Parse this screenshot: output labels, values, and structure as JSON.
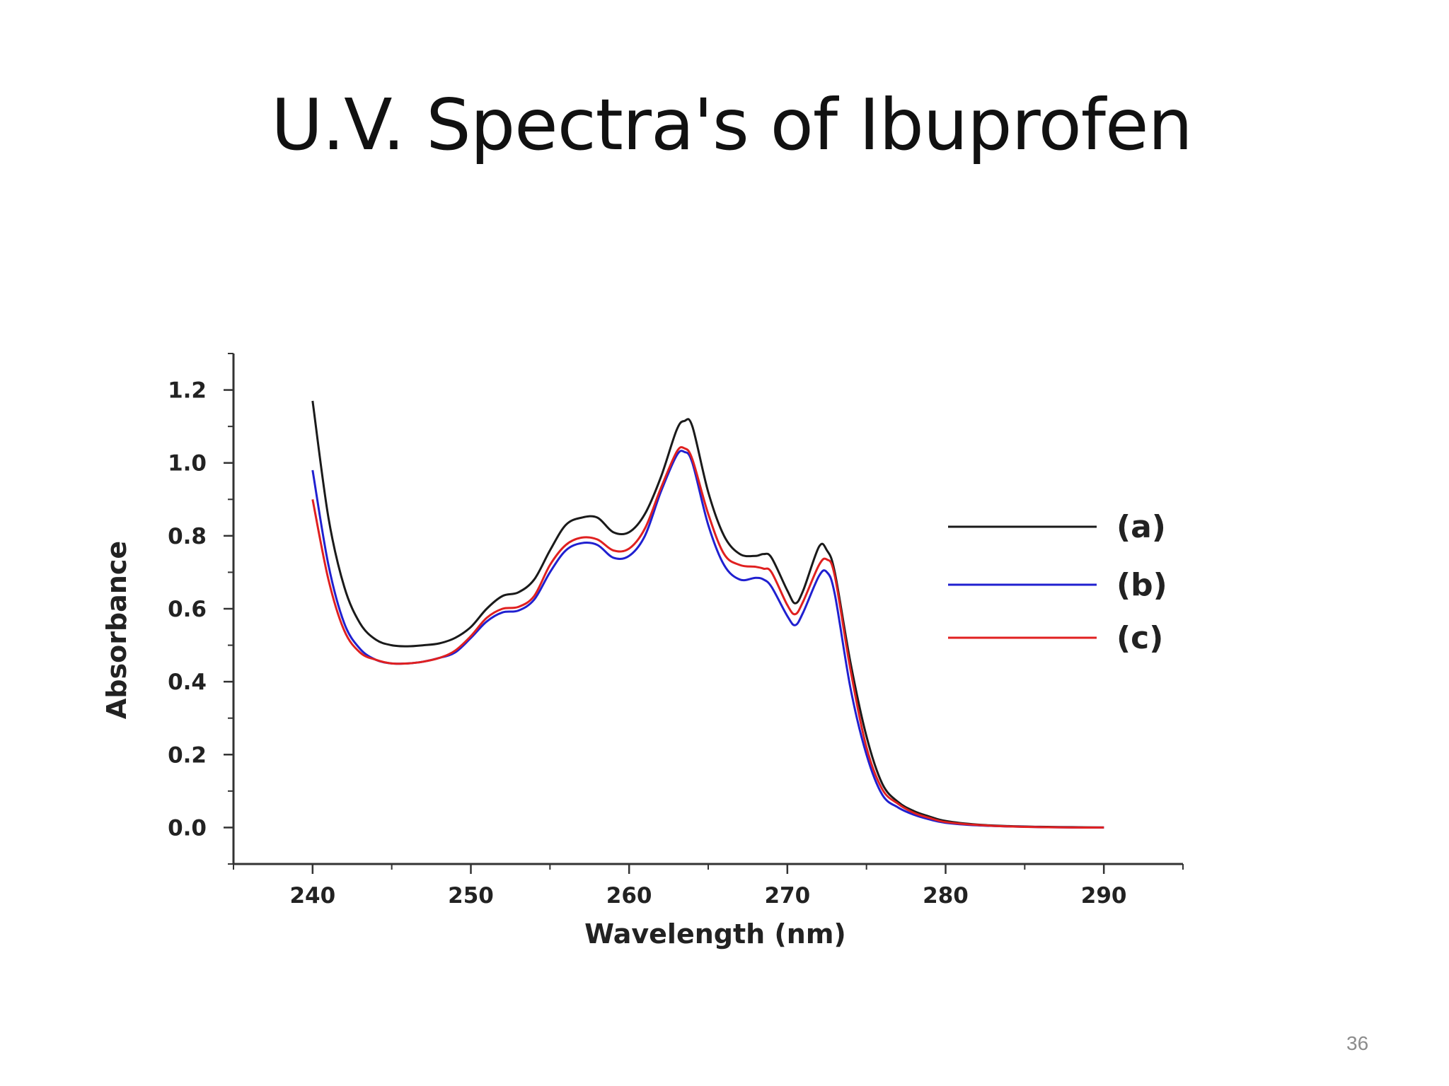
{
  "slide": {
    "title": "U.V. Spectra's of Ibuprofen",
    "page_number": "36"
  },
  "chart_data": {
    "type": "line",
    "title": "",
    "xlabel": "Wavelength (nm)",
    "ylabel": "Absorbance",
    "xlim": [
      235,
      295
    ],
    "ylim": [
      -0.1,
      1.3
    ],
    "xticks": [
      240,
      250,
      260,
      270,
      280,
      290
    ],
    "yticks": [
      0.0,
      0.2,
      0.4,
      0.6,
      0.8,
      1.0,
      1.2
    ],
    "xtick_labels": [
      "240",
      "250",
      "260",
      "270",
      "280",
      "290"
    ],
    "ytick_labels": [
      "0.0",
      "0.2",
      "0.4",
      "0.6",
      "0.8",
      "1.0",
      "1.2"
    ],
    "grid": false,
    "legend_position": "right",
    "x": [
      240,
      241,
      242,
      243,
      244,
      245,
      246,
      247,
      248,
      249,
      250,
      251,
      252,
      253,
      254,
      255,
      256,
      257,
      258,
      259,
      260,
      261,
      262,
      263,
      263.5,
      264,
      265,
      266,
      267,
      268,
      268.5,
      269,
      270,
      270.5,
      271,
      272,
      272.5,
      273,
      274,
      275,
      276,
      277,
      278,
      279,
      280,
      282,
      284,
      286,
      288,
      290
    ],
    "series": [
      {
        "name": "(a)",
        "color": "#1a1a1a",
        "values": [
          1.17,
          0.85,
          0.66,
          0.56,
          0.515,
          0.5,
          0.497,
          0.5,
          0.505,
          0.52,
          0.55,
          0.6,
          0.635,
          0.645,
          0.68,
          0.76,
          0.83,
          0.85,
          0.85,
          0.81,
          0.81,
          0.86,
          0.96,
          1.09,
          1.115,
          1.1,
          0.92,
          0.8,
          0.75,
          0.745,
          0.75,
          0.74,
          0.65,
          0.615,
          0.65,
          0.77,
          0.76,
          0.7,
          0.45,
          0.25,
          0.12,
          0.07,
          0.045,
          0.03,
          0.018,
          0.008,
          0.004,
          0.002,
          0.001,
          0.0
        ]
      },
      {
        "name": "(b)",
        "color": "#2020d0",
        "values": [
          0.98,
          0.72,
          0.56,
          0.49,
          0.46,
          0.45,
          0.45,
          0.455,
          0.465,
          0.48,
          0.52,
          0.565,
          0.59,
          0.595,
          0.625,
          0.7,
          0.76,
          0.78,
          0.775,
          0.74,
          0.745,
          0.8,
          0.92,
          1.02,
          1.03,
          1.0,
          0.83,
          0.72,
          0.68,
          0.685,
          0.68,
          0.66,
          0.58,
          0.555,
          0.59,
          0.69,
          0.7,
          0.64,
          0.38,
          0.2,
          0.09,
          0.055,
          0.035,
          0.022,
          0.013,
          0.006,
          0.003,
          0.001,
          0.0,
          0.0
        ]
      },
      {
        "name": "(c)",
        "color": "#e02020",
        "values": [
          0.9,
          0.68,
          0.54,
          0.48,
          0.46,
          0.45,
          0.45,
          0.455,
          0.465,
          0.485,
          0.525,
          0.575,
          0.6,
          0.605,
          0.635,
          0.72,
          0.775,
          0.795,
          0.79,
          0.76,
          0.765,
          0.82,
          0.93,
          1.03,
          1.04,
          1.01,
          0.86,
          0.75,
          0.72,
          0.715,
          0.71,
          0.7,
          0.61,
          0.585,
          0.62,
          0.72,
          0.735,
          0.69,
          0.43,
          0.22,
          0.105,
          0.065,
          0.04,
          0.026,
          0.015,
          0.007,
          0.003,
          0.001,
          0.0,
          0.0
        ]
      }
    ]
  }
}
